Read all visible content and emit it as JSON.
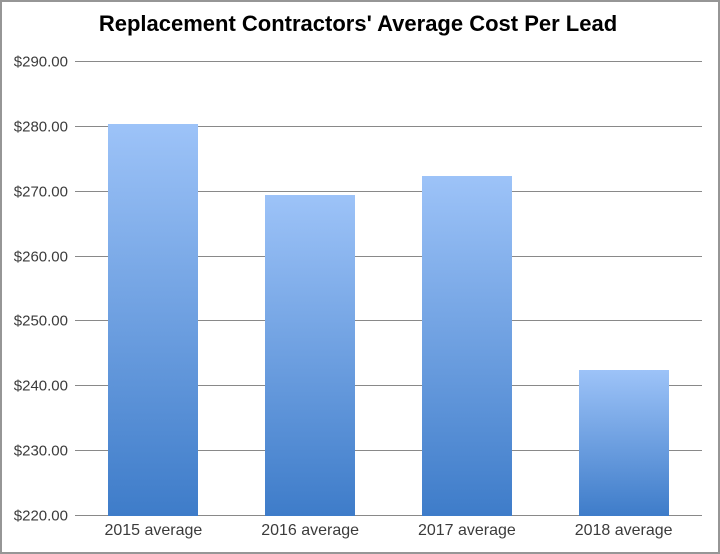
{
  "chart_data": {
    "type": "bar",
    "title": "Replacement Contractors' Average Cost Per Lead",
    "categories": [
      "2015 average",
      "2016 average",
      "2017 average",
      "2018 average"
    ],
    "values": [
      280.5,
      269.5,
      272.5,
      242.5
    ],
    "ylim": [
      220,
      290
    ],
    "ytick_step": 10,
    "ytick_labels": [
      "$220.00",
      "$230.00",
      "$240.00",
      "$250.00",
      "$260.00",
      "$270.00",
      "$280.00",
      "$290.00"
    ],
    "xlabel": "",
    "ylabel": "",
    "grid": true,
    "legend": false,
    "colors": {
      "bar_gradient_top": "#9DC3F8",
      "bar_gradient_bottom": "#3E7CC9",
      "gridline": "#898989",
      "axis_label": "#3B3B3B",
      "title": "#000000",
      "background": "#FFFFFF",
      "border": "#969696"
    }
  }
}
